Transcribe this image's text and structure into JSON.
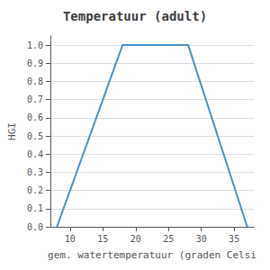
{
  "chart_data": {
    "type": "line",
    "title": "Temperatuur (adult)",
    "xlabel": "gem. watertemperatuur (graden Celsi",
    "ylabel": "HGI",
    "x": [
      8,
      18,
      28,
      37
    ],
    "values": [
      0.0,
      1.0,
      1.0,
      0.0
    ],
    "color": "#4a90c4",
    "xlim": [
      7,
      38
    ],
    "ylim": [
      0.0,
      1.05
    ],
    "xticks": [
      10,
      15,
      20,
      25,
      30,
      35
    ],
    "yticks": [
      {
        "value": 0.0,
        "label": "0.0"
      },
      0.1,
      0.2,
      0.3,
      0.4,
      0.5,
      0.6,
      0.7,
      0.8,
      0.9,
      {
        "value": 1.0,
        "label": "1.0"
      }
    ],
    "grid": "y"
  }
}
